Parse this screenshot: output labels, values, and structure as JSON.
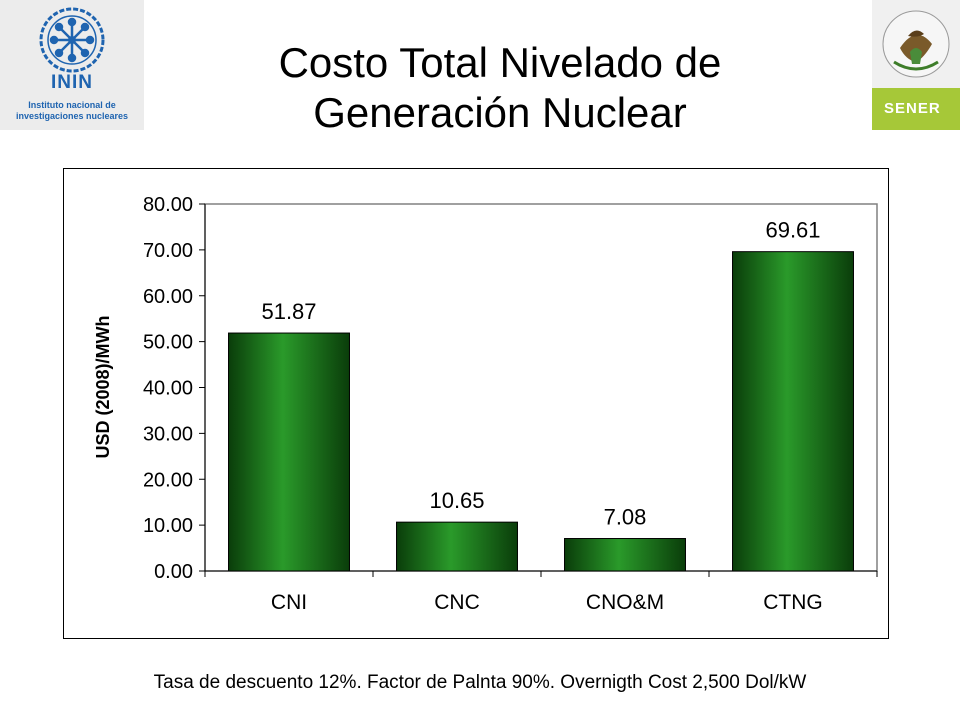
{
  "title_line1": "Costo Total Nivelado de",
  "title_line2": "Generación Nuclear",
  "logos": {
    "left": {
      "word": "ININ",
      "sub_line1": "Instituto nacional de",
      "sub_line2": "investigaciones nucleares",
      "color": "#1f64b0"
    },
    "right": {
      "word": "SENER",
      "seal_text": "ESTADOS UNIDOS MEXICANOS",
      "accent": "#a6c838"
    }
  },
  "footnote": "Tasa de descuento 12%. Factor de Palnta 90%. Overnigth Cost 2,500 Dol/kW",
  "chart_data": {
    "type": "bar",
    "categories": [
      "CNI",
      "CNC",
      "CNO&M",
      "CTNG"
    ],
    "values": [
      51.87,
      10.65,
      7.08,
      69.61
    ],
    "data_labels": [
      "51.87",
      "10.65",
      "7.08",
      "69.61"
    ],
    "ylabel": "USD (2008)/MWh",
    "xlabel": "",
    "ylim": [
      0,
      80
    ],
    "yticks": [
      "0.00",
      "10.00",
      "20.00",
      "30.00",
      "40.00",
      "50.00",
      "60.00",
      "70.00",
      "80.00"
    ],
    "grid": false,
    "bar_color": "#1e7d1e"
  }
}
